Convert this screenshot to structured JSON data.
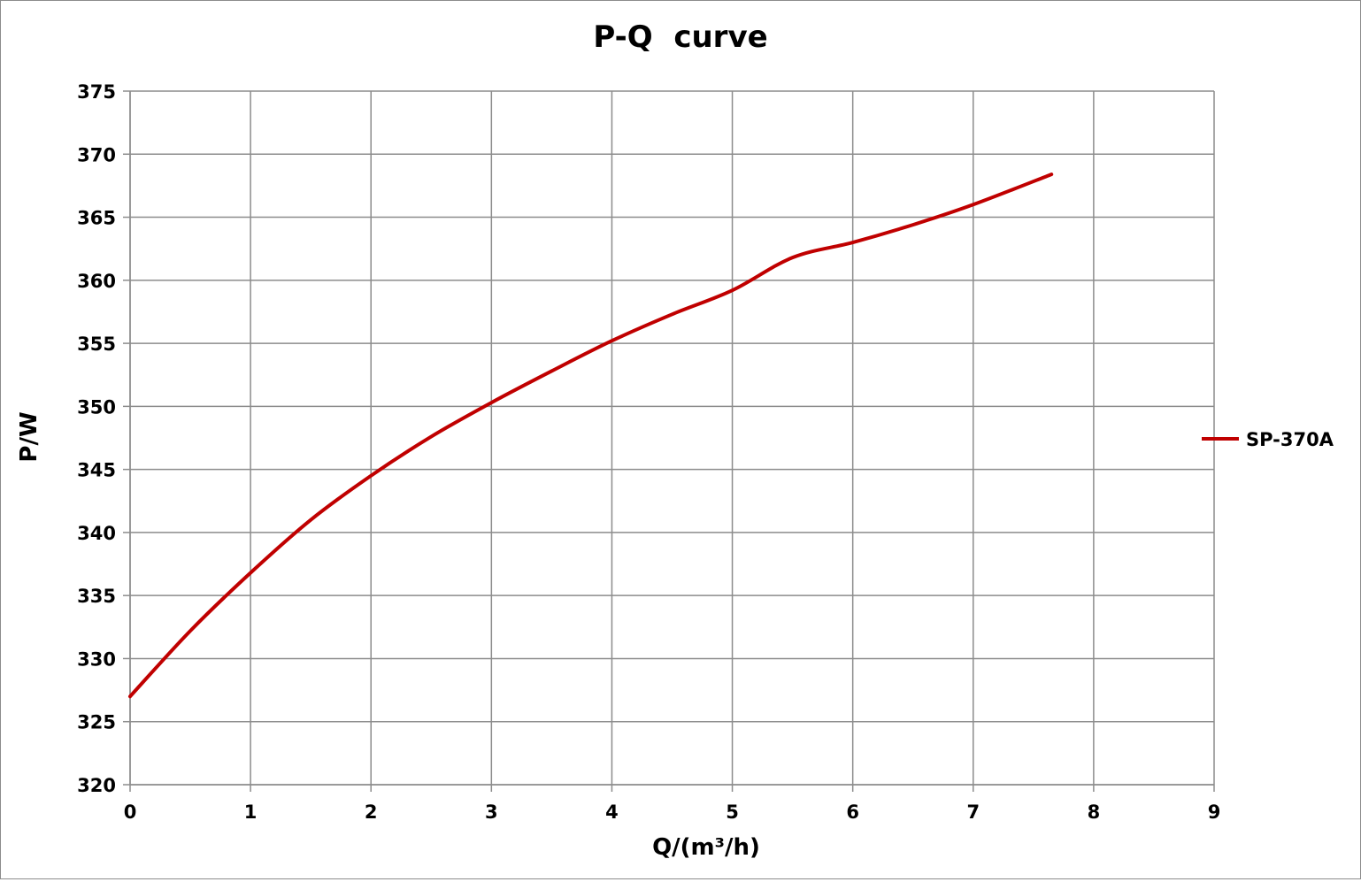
{
  "chart_data": {
    "type": "line",
    "title": "P-Q  curve",
    "xlabel": "Q/(m³/h)",
    "ylabel": "P/W",
    "xlim": [
      0,
      9
    ],
    "ylim": [
      320,
      375
    ],
    "x_ticks": [
      0,
      1,
      2,
      3,
      4,
      5,
      6,
      7,
      8,
      9
    ],
    "y_ticks": [
      320,
      325,
      330,
      335,
      340,
      345,
      350,
      355,
      360,
      365,
      370,
      375
    ],
    "grid": true,
    "legend_position": "right",
    "series": [
      {
        "name": "SP-370A",
        "color": "#c00000",
        "x": [
          0,
          0.5,
          1,
          1.5,
          2,
          2.5,
          3,
          3.5,
          4,
          4.5,
          5,
          5.5,
          6,
          6.5,
          7,
          7.65
        ],
        "y": [
          327.0,
          332.2,
          336.8,
          341.0,
          344.5,
          347.6,
          350.3,
          352.8,
          355.2,
          357.3,
          359.2,
          361.8,
          363.0,
          364.4,
          366.0,
          368.4
        ]
      }
    ]
  }
}
